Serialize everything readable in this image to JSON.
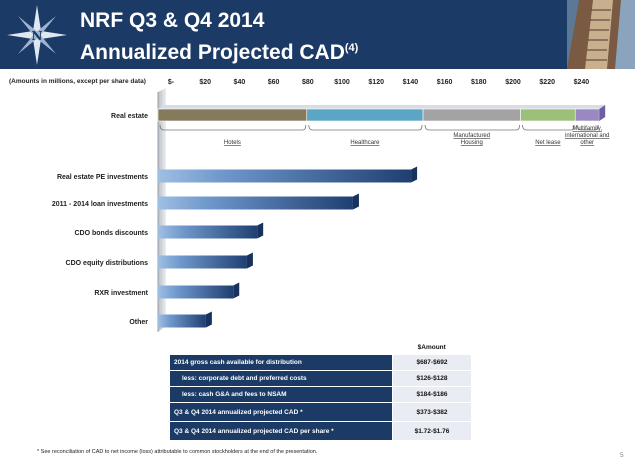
{
  "header": {
    "title_line1": "NRF Q3 & Q4 2014",
    "title_line2": "Annualized Projected CAD",
    "title_superscript": "(4)",
    "colors": {
      "navy": "#1b3a66",
      "accent": "#3d6aa8"
    }
  },
  "amounts_note": "(Amounts in millions, except per share data)",
  "chart_data": {
    "type": "bar",
    "orientation": "horizontal",
    "x_tick_labels": [
      "$-",
      "$20",
      "$40",
      "$60",
      "$80",
      "$100",
      "$120",
      "$140",
      "$160",
      "$180",
      "$200",
      "$220",
      "$240"
    ],
    "xlim": [
      0,
      250
    ],
    "categories": [
      "Real estate",
      "Real estate PE investments",
      "2011 - 2014 loan investments",
      "CDO bonds discounts",
      "CDO equity distributions",
      "RXR investment",
      "Other"
    ],
    "values": [
      258,
      148,
      114,
      58,
      52,
      44,
      28
    ],
    "stacked_segments": {
      "category": "Real estate",
      "segments": [
        {
          "name": "Hotels",
          "value": 87,
          "color": "#857a5c"
        },
        {
          "name": "Healthcare",
          "value": 68,
          "color": "#5aa6c4"
        },
        {
          "name": "Manufactured Housing",
          "value": 57,
          "color": "#a3a3a3"
        },
        {
          "name": "Net lease",
          "value": 32,
          "color": "#9cbf7a"
        },
        {
          "name": "Multifamily, international and other",
          "value": 14,
          "color": "#9a88c0"
        }
      ],
      "label_lines": [
        [
          "Hotels"
        ],
        [
          "Healthcare"
        ],
        [
          "Manufactured",
          "Housing"
        ],
        [
          "Net lease"
        ],
        [
          "Multifamily,",
          "international and",
          "other"
        ]
      ]
    },
    "bar_color": "#2c4f86"
  },
  "table": {
    "column_header": "$Amount",
    "rows": [
      {
        "label": "2014 gross cash available for distribution",
        "value": "$687-$692"
      },
      {
        "label": "less: corporate debt and preferred costs",
        "value": "$126-$128"
      },
      {
        "label": "less: cash G&A and fees to NSAM",
        "value": "$184-$186"
      },
      {
        "label": "Q3 & Q4 2014 annualized projected CAD *",
        "value": "$373-$382"
      },
      {
        "label": "Q3 & Q4 2014 annualized projected CAD per share *",
        "value": "$1.72-$1.76"
      }
    ]
  },
  "footnote": "* See reconciliation of CAD to net income (loss) attributable to common stockholders at the end of the presentation.",
  "page_number": "5"
}
